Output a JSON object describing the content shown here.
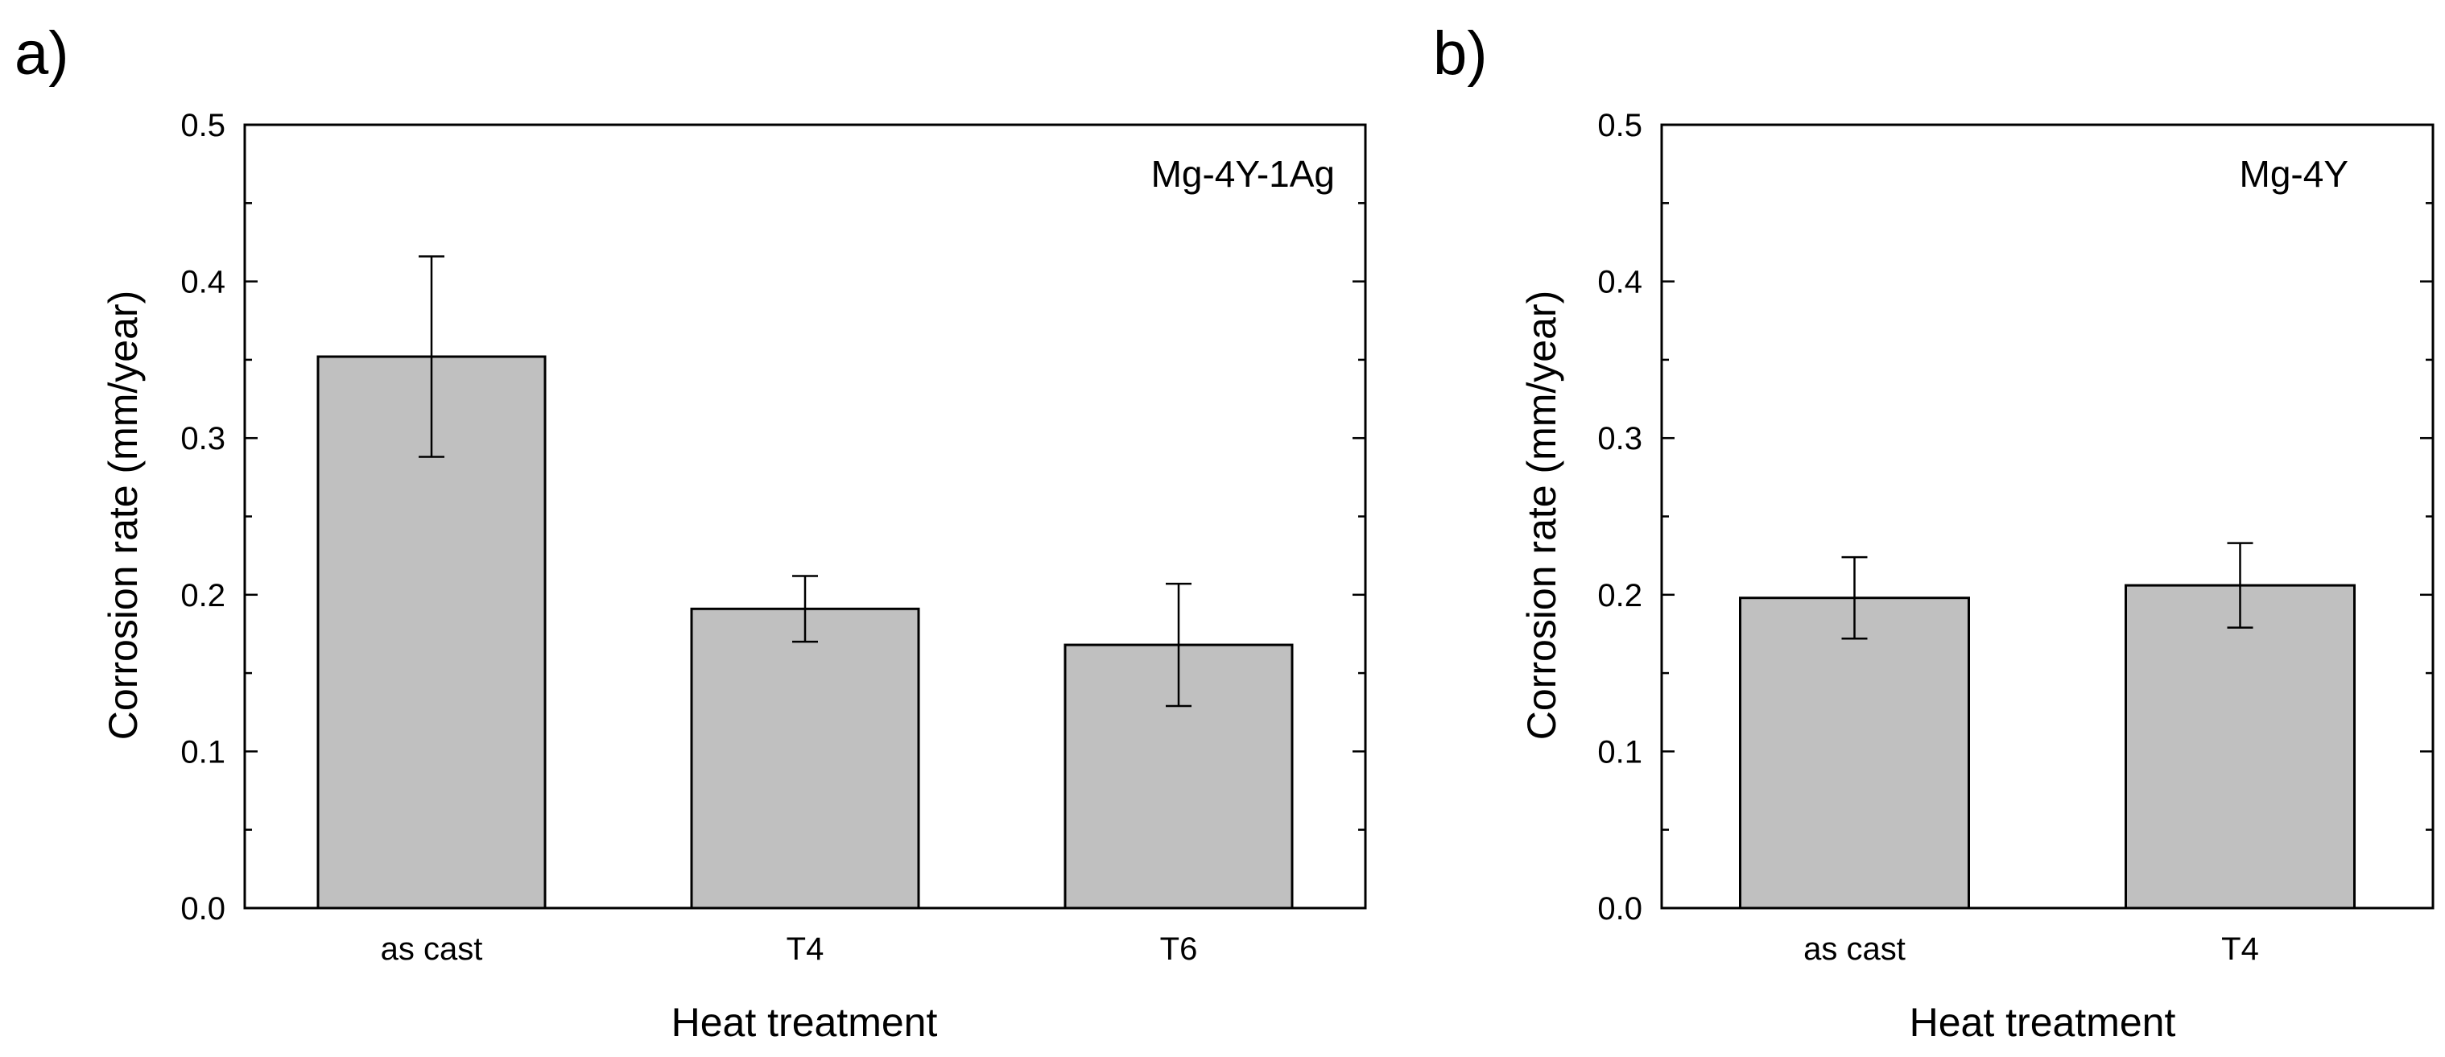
{
  "chart_data": [
    {
      "type": "bar",
      "panel_label": "a)",
      "annotation": "Mg-4Y-1Ag",
      "xlabel": "Heat treatment",
      "ylabel": "Corrosion rate (mm/year)",
      "ylim": [
        0,
        0.5
      ],
      "yticks": [
        "0.0",
        "0.1",
        "0.2",
        "0.3",
        "0.4",
        "0.5"
      ],
      "categories": [
        "as cast",
        "T4",
        "T6"
      ],
      "values": [
        0.352,
        0.191,
        0.168
      ],
      "errors": [
        {
          "low": 0.288,
          "high": 0.416
        },
        {
          "low": 0.17,
          "high": 0.212
        },
        {
          "low": 0.129,
          "high": 0.207
        }
      ],
      "bar_color": "#c0c0c0",
      "grid": false
    },
    {
      "type": "bar",
      "panel_label": "b)",
      "annotation": "Mg-4Y",
      "xlabel": "Heat treatment",
      "ylabel": "Corrosion rate (mm/year)",
      "ylim": [
        0,
        0.5
      ],
      "yticks": [
        "0.0",
        "0.1",
        "0.2",
        "0.3",
        "0.4",
        "0.5"
      ],
      "categories": [
        "as cast",
        "T4"
      ],
      "values": [
        0.198,
        0.206
      ],
      "errors": [
        {
          "low": 0.172,
          "high": 0.224
        },
        {
          "low": 0.179,
          "high": 0.233
        }
      ],
      "bar_color": "#c0c0c0",
      "grid": false
    }
  ]
}
